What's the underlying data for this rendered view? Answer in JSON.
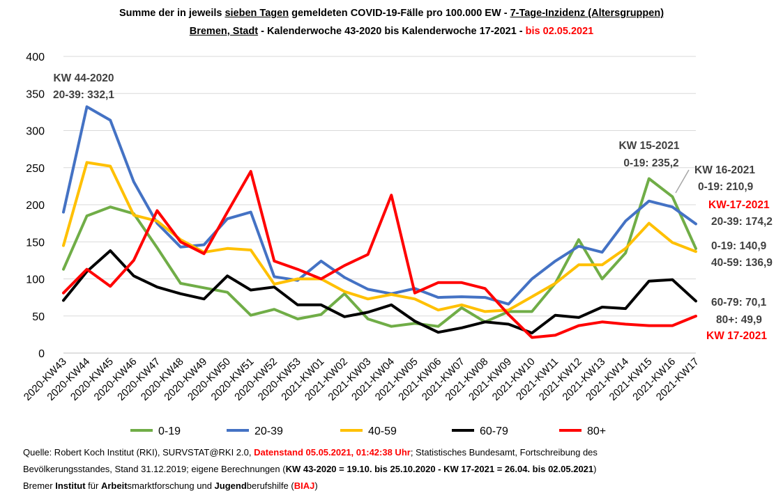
{
  "title": {
    "line1_a": "Summe der in jeweils ",
    "line1_b": "sieben Tagen",
    "line1_c": " gemeldeten COVID-19-Fälle pro 100.000 EW - ",
    "line1_d": "7-Tage-Inzidenz (Altersgruppen)",
    "line2_a": "Bremen, Stadt",
    "line2_b": " -  Kalenderwoche 43-2020 bis Kalenderwoche 17-2021 - ",
    "line2_c": "bis 02.05.2021"
  },
  "chart_data": {
    "type": "line",
    "ylim": [
      0,
      400
    ],
    "yticks": [
      "0",
      "50",
      "100",
      "150",
      "200",
      "250",
      "300",
      "350",
      "400"
    ],
    "grid": true,
    "legend_position": "bottom",
    "categories": [
      "2020-KW43",
      "2020-KW44",
      "2020-KW45",
      "2020-KW46",
      "2020-KW47",
      "2020-KW48",
      "2020-KW49",
      "2020-KW50",
      "2020-KW51",
      "2020-KW52",
      "2020-KW53",
      "2021-KW01",
      "2021-KW02",
      "2021-KW03",
      "2021-KW04",
      "2021-KW05",
      "2021-KW06",
      "2021-KW07",
      "2021-KW08",
      "2021-KW09",
      "2021-KW10",
      "2021-KW11",
      "2021-KW12",
      "2021-KW13",
      "2021-KW14",
      "2021-KW15",
      "2021-KW16",
      "2021-KW17"
    ],
    "series": [
      {
        "name": "0-19",
        "color": "#70ad47",
        "values": [
          113,
          185,
          197,
          188,
          142,
          94,
          88,
          82,
          51,
          59,
          46,
          52,
          80,
          46,
          36,
          40,
          36,
          61,
          42,
          56,
          56,
          94,
          153,
          100,
          135,
          235.2,
          210.9,
          140.9
        ]
      },
      {
        "name": "20-39",
        "color": "#4472c4",
        "values": [
          190,
          332.1,
          314,
          231,
          175,
          143,
          146,
          181,
          190,
          103,
          98,
          124,
          102,
          86,
          80,
          87,
          75,
          76,
          75,
          66,
          100,
          124,
          144,
          136,
          178,
          205,
          197,
          174.2
        ]
      },
      {
        "name": "40-59",
        "color": "#ffc000",
        "values": [
          145,
          257,
          252,
          186,
          178,
          153,
          136,
          141,
          139,
          93,
          100,
          100,
          83,
          73,
          79,
          73,
          58,
          65,
          56,
          58,
          76,
          94,
          119,
          119,
          141,
          175,
          149,
          136.9
        ]
      },
      {
        "name": "60-79",
        "color": "#000000",
        "values": [
          71,
          110,
          138,
          104,
          89,
          80,
          73,
          104,
          85,
          89,
          65,
          65,
          49,
          55,
          65,
          43,
          28,
          34,
          42,
          39,
          27,
          51,
          48,
          62,
          60,
          97,
          99,
          70.1
        ]
      },
      {
        "name": "80+",
        "color": "#ff0000",
        "values": [
          81,
          113,
          90,
          125,
          192,
          150,
          134,
          190,
          245,
          124,
          113,
          100,
          118,
          133,
          213,
          81,
          95,
          95,
          87,
          52,
          21,
          24,
          37,
          42,
          39,
          37,
          37,
          49.9
        ]
      }
    ],
    "annotations": [
      {
        "id": "kw44_a",
        "text": "KW 44-2020",
        "color": "#404040"
      },
      {
        "id": "kw44_b",
        "text": "20-39: 332,1",
        "color": "#404040"
      },
      {
        "id": "kw15_a",
        "text": "KW 15-2021",
        "color": "#404040"
      },
      {
        "id": "kw15_b",
        "text": "0-19: 235,2",
        "color": "#404040"
      },
      {
        "id": "kw16_a",
        "text": "KW 16-2021",
        "color": "#404040"
      },
      {
        "id": "kw16_b",
        "text": "0-19: 210,9",
        "color": "#404040"
      },
      {
        "id": "kw17_hdr",
        "text": "KW-17-2021",
        "color": "#ff0000"
      },
      {
        "id": "v2039",
        "text": "20-39: 174,2",
        "color": "#404040"
      },
      {
        "id": "v019",
        "text": "0-19: 140,9",
        "color": "#404040"
      },
      {
        "id": "v4059",
        "text": "40-59: 136,9",
        "color": "#404040"
      },
      {
        "id": "v6079",
        "text": "60-79: 70,1",
        "color": "#404040"
      },
      {
        "id": "v80",
        "text": "80+: 49,9",
        "color": "#404040"
      },
      {
        "id": "kw17_ftr",
        "text": "KW 17-2021",
        "color": "#ff0000"
      }
    ]
  },
  "source": {
    "l1_a": "Quelle: Robert Koch Institut (RKI), SURVSTAT@RKI 2.0, ",
    "l1_b": "Datenstand 05.05.2021, 01:42:38 Uhr",
    "l1_c": "; Statistisches Bundesamt, Fortschreibung des",
    "l2_a": "Bevölkerungsstandes, Stand 31.12.2019; eigene Berechnungen (",
    "l2_b": "KW 43-2020 = 19.10. bis 25.10.2020 - KW 17-2021 = 26.04. bis 02.05.2021",
    "l2_c": ")",
    "l3_a": "Bremer ",
    "l3_b": "Institut",
    "l3_c": " für ",
    "l3_d": "Arbeit",
    "l3_e": "smarktforschung und ",
    "l3_f": "Jugend",
    "l3_g": "berufshilfe (",
    "l3_h": "BIAJ",
    "l3_i": ")"
  }
}
